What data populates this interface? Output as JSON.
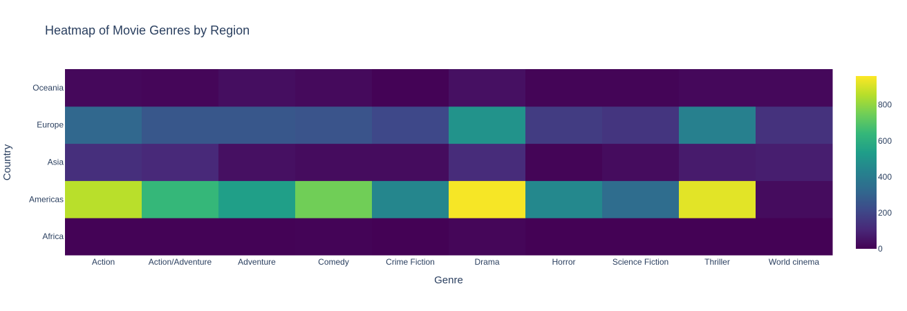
{
  "chart_data": {
    "type": "heatmap",
    "title": "Heatmap of Movie Genres by Region",
    "xlabel": "Genre",
    "ylabel": "Country",
    "x": [
      "Action",
      "Action/Adventure",
      "Adventure",
      "Comedy",
      "Crime Fiction",
      "Drama",
      "Horror",
      "Science Fiction",
      "Thriller",
      "World cinema"
    ],
    "y": [
      "Africa",
      "Americas",
      "Asia",
      "Europe",
      "Oceania"
    ],
    "z": [
      [
        5,
        5,
        5,
        8,
        3,
        15,
        2,
        3,
        3,
        2
      ],
      [
        860,
        640,
        540,
        750,
        440,
        950,
        450,
        340,
        920,
        30
      ],
      [
        130,
        110,
        40,
        30,
        30,
        120,
        10,
        30,
        70,
        80
      ],
      [
        320,
        260,
        260,
        250,
        210,
        490,
        170,
        150,
        420,
        140
      ],
      [
        20,
        15,
        35,
        25,
        5,
        40,
        10,
        10,
        20,
        20
      ]
    ],
    "zmin": 0,
    "zmax": 960,
    "colorscale": "viridis",
    "colorbar": {
      "ticks": [
        0,
        200,
        400,
        600,
        800
      ],
      "labels": [
        "0",
        "200",
        "400",
        "600",
        "800"
      ]
    },
    "grid": false,
    "legend": "colorbar-right"
  }
}
